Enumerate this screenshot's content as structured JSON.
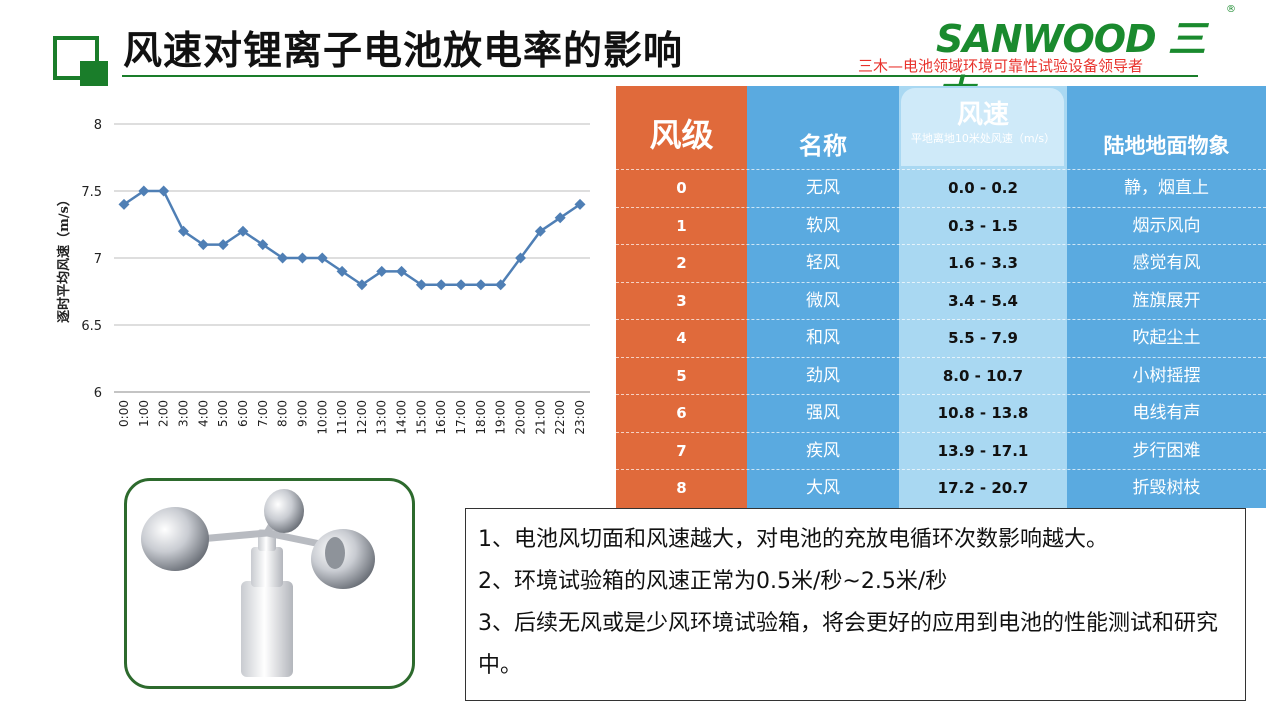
{
  "header": {
    "title": "风速对锂离子电池放电率的影响",
    "logo_text": "SANWOOD 三木",
    "logo_reg": "®",
    "tagline": "三木—电池领域环境可靠性试验设备领导者"
  },
  "colors": {
    "brand_green": "#1a7d2a",
    "tagline_red": "#e8322c",
    "series_line": "#4f7fb5",
    "table_orange": "#e06a3b",
    "table_blue": "#5aaae0"
  },
  "chart_data": {
    "type": "line",
    "title": "",
    "xlabel": "",
    "ylabel": "逐时平均风速（m/s）",
    "ylim": [
      6,
      8
    ],
    "yticks": [
      6,
      6.5,
      7,
      7.5,
      8
    ],
    "grid": true,
    "categories": [
      "0:00",
      "1:00",
      "2:00",
      "3:00",
      "4:00",
      "5:00",
      "6:00",
      "7:00",
      "8:00",
      "9:00",
      "10:00",
      "11:00",
      "12:00",
      "13:00",
      "14:00",
      "15:00",
      "16:00",
      "17:00",
      "18:00",
      "19:00",
      "20:00",
      "21:00",
      "22:00",
      "23:00"
    ],
    "series": [
      {
        "values": [
          7.4,
          7.5,
          7.5,
          7.2,
          7.1,
          7.1,
          7.2,
          7.1,
          7.0,
          7.0,
          7.0,
          6.9,
          6.8,
          6.9,
          6.9,
          6.8,
          6.8,
          6.8,
          6.8,
          6.8,
          7.0,
          7.2,
          7.3,
          7.4
        ]
      }
    ]
  },
  "wind_table": {
    "headers": {
      "level": "风级",
      "name": "名称",
      "speed": "风速",
      "speed_sub": "平地离地10米处风速（m/s）",
      "scene": "陆地地面物象"
    },
    "rows": [
      {
        "level": "0",
        "name": "无风",
        "speed": "0.0 - 0.2",
        "scene": "静，烟直上"
      },
      {
        "level": "1",
        "name": "软风",
        "speed": "0.3 - 1.5",
        "scene": "烟示风向"
      },
      {
        "level": "2",
        "name": "轻风",
        "speed": "1.6 - 3.3",
        "scene": "感觉有风"
      },
      {
        "level": "3",
        "name": "微风",
        "speed": "3.4 - 5.4",
        "scene": "旌旗展开"
      },
      {
        "level": "4",
        "name": "和风",
        "speed": "5.5 - 7.9",
        "scene": "吹起尘土"
      },
      {
        "level": "5",
        "name": "劲风",
        "speed": "8.0 - 10.7",
        "scene": "小树摇摆"
      },
      {
        "level": "6",
        "name": "强风",
        "speed": "10.8 - 13.8",
        "scene": "电线有声"
      },
      {
        "level": "7",
        "name": "疾风",
        "speed": "13.9 - 17.1",
        "scene": "步行困难"
      },
      {
        "level": "8",
        "name": "大风",
        "speed": "17.2 - 20.7",
        "scene": "折毁树枝"
      }
    ]
  },
  "notes": [
    "1、电池风切面和风速越大，对电池的充放电循环次数影响越大。",
    "2、环境试验箱的风速正常为0.5米/秒~2.5米/秒",
    " 3、后续无风或是少风环境试验箱，将会更好的应用到电池的性能测试和研究中。"
  ]
}
